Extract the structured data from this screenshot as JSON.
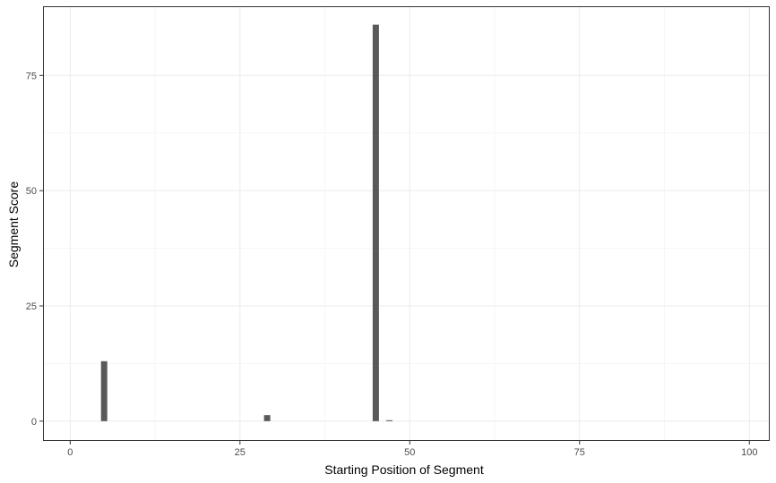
{
  "chart_data": {
    "type": "bar",
    "title": "",
    "xlabel": "Starting Position of Segment",
    "ylabel": "Segment Score",
    "xlim": [
      -4,
      103
    ],
    "ylim": [
      -4.3,
      90
    ],
    "x_ticks": [
      0,
      25,
      50,
      75,
      100
    ],
    "y_ticks": [
      0,
      25,
      50,
      75
    ],
    "x_minor_ticks": [
      12.5,
      37.5,
      62.5,
      87.5
    ],
    "y_minor_ticks": [
      12.5,
      37.5,
      62.5
    ],
    "grid": true,
    "bar_color": "#595959",
    "x": [
      5,
      29,
      45,
      47
    ],
    "values": [
      13,
      1.3,
      86,
      0.2
    ]
  }
}
